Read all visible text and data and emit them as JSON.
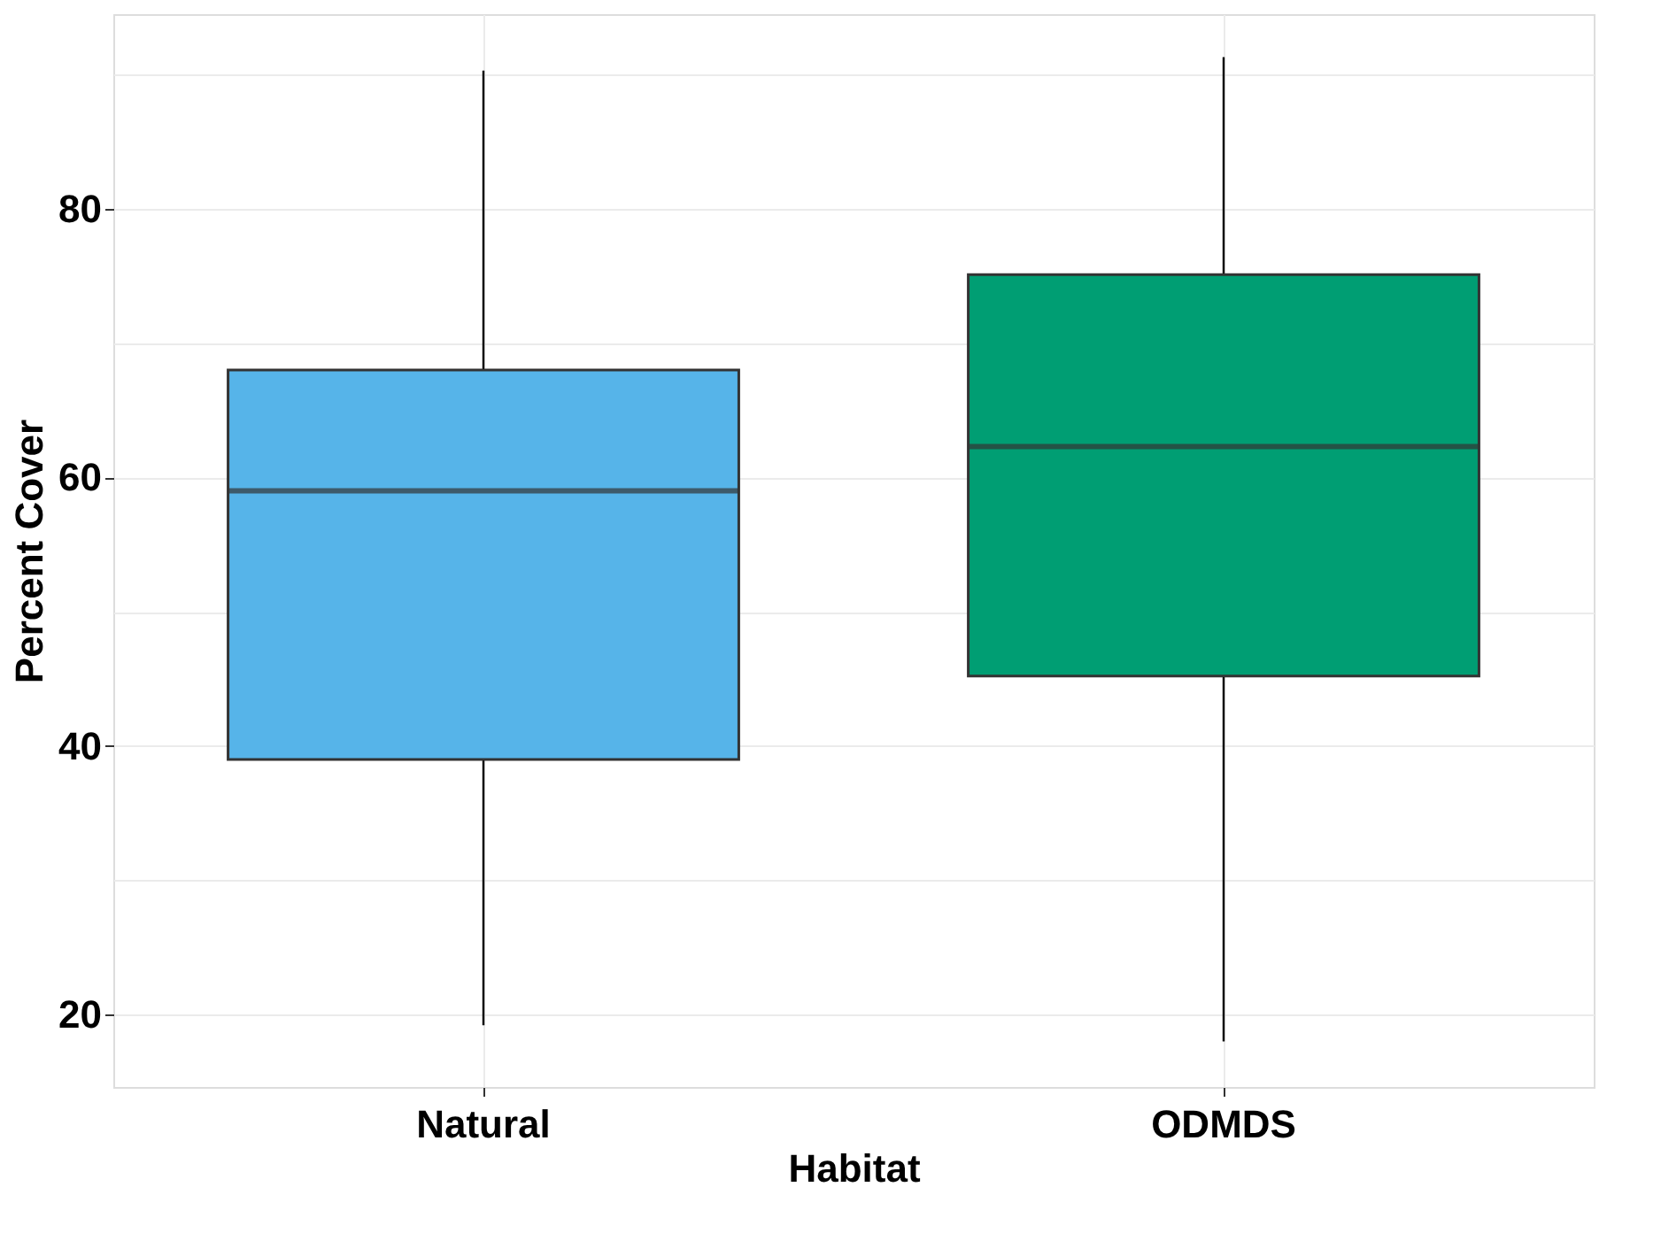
{
  "chart_data": {
    "type": "box",
    "xlabel": "Habitat",
    "ylabel": "Percent Cover",
    "categories": [
      "Natural",
      "ODMDS"
    ],
    "colors": [
      "#56b4e9",
      "#009e73"
    ],
    "boxes": [
      {
        "low": 19.2,
        "q1": 39.0,
        "median": 59.0,
        "q3": 68.0,
        "high": 90.3
      },
      {
        "low": 18.0,
        "q1": 45.2,
        "median": 62.3,
        "q3": 75.1,
        "high": 91.3
      }
    ],
    "ylim": [
      14.6,
      94.5
    ],
    "yticks": [
      20,
      {
        "value": 30,
        "label": null
      },
      40,
      {
        "value": 50,
        "label": null
      },
      60,
      {
        "value": 70,
        "label": null
      },
      80,
      {
        "value": 90,
        "label": null
      }
    ],
    "grid": true,
    "legend": false
  }
}
